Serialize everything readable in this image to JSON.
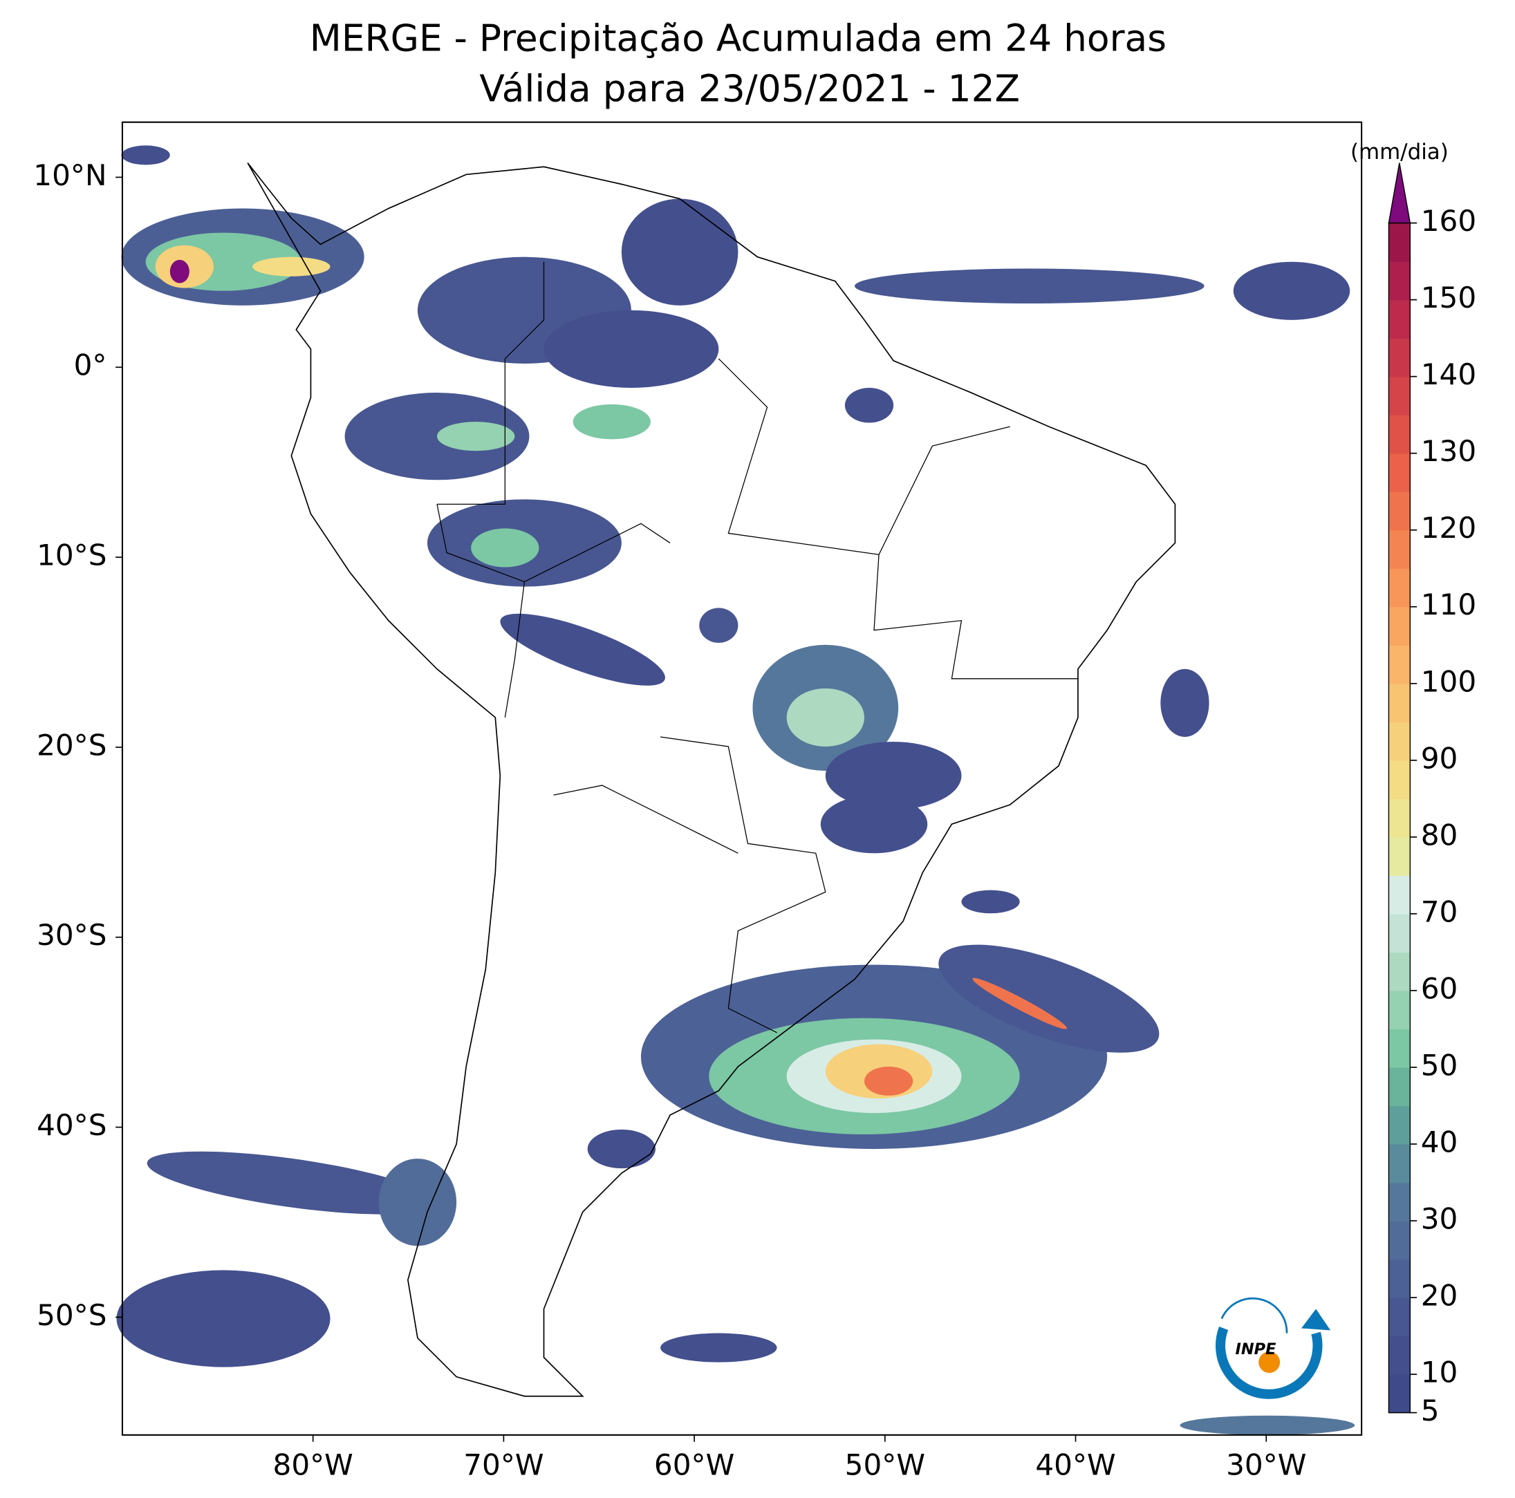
{
  "chart_data": {
    "type": "map",
    "title": "MERGE - Precipitação Acumulada em 24 horas",
    "subtitle": "Válida para 23/05/2021 - 12Z",
    "xlim": [
      -90,
      -25
    ],
    "ylim": [
      -56.2,
      12.9
    ],
    "xticks": [
      {
        "value": -80,
        "label": "80°W"
      },
      {
        "value": -70,
        "label": "70°W"
      },
      {
        "value": -60,
        "label": "60°W"
      },
      {
        "value": -50,
        "label": "50°W"
      },
      {
        "value": -40,
        "label": "40°W"
      },
      {
        "value": -30,
        "label": "30°W"
      }
    ],
    "yticks": [
      {
        "value": 10,
        "label": "10°N"
      },
      {
        "value": 0,
        "label": "0°"
      },
      {
        "value": -10,
        "label": "10°S"
      },
      {
        "value": -20,
        "label": "20°S"
      },
      {
        "value": -30,
        "label": "30°S"
      },
      {
        "value": -40,
        "label": "40°S"
      },
      {
        "value": -50,
        "label": "50°S"
      }
    ],
    "colorbar": {
      "label": "(mm/dia)",
      "lim": [
        5,
        160
      ],
      "ticks": [
        5,
        10,
        20,
        30,
        40,
        50,
        60,
        70,
        80,
        90,
        100,
        110,
        120,
        130,
        140,
        150,
        160
      ],
      "colors": [
        "#3f4a8a",
        "#444f8e",
        "#485791",
        "#4c6196",
        "#516c99",
        "#55779b",
        "#598b9c",
        "#5e9f9b",
        "#69b49b",
        "#7cc7a4",
        "#95d2b1",
        "#add9c1",
        "#c4e3d6",
        "#d8ece6",
        "#e6eaa0",
        "#eee592",
        "#f4dc85",
        "#f7d07b",
        "#f9c472",
        "#fab56a",
        "#f9a661",
        "#f8965a",
        "#f48553",
        "#ef744d",
        "#e96249",
        "#e05247",
        "#d54449",
        "#c9374b",
        "#bc2a4c",
        "#ad1f4c",
        "#9c164a"
      ],
      "extend_color": "#7f0a7d"
    }
  },
  "logo": {
    "text": "INPE"
  }
}
